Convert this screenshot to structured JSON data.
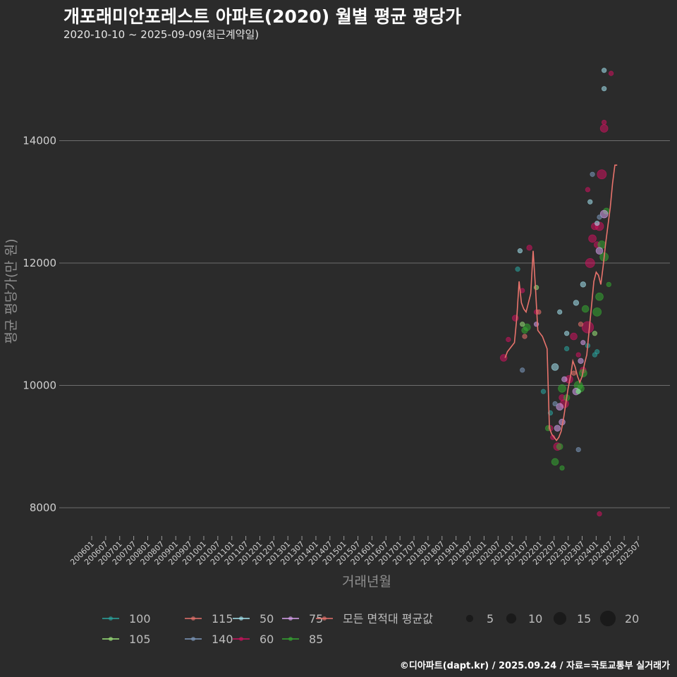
{
  "header": {
    "title": "개포래미안포레스트 아파트(2020) 월별 평균 평당가",
    "subtitle": "2020-10-10 ~ 2025-09-09(최근계약일)"
  },
  "footer": {
    "text": "©디아파트(dapt.kr) / 2025.09.24 / 자료=국토교통부 실거래가"
  },
  "colors": {
    "background": "#2b2b2b",
    "grid": "#6e6e6e",
    "avg_line": "#e8736c",
    "area_100": "#2aa6a0",
    "area_105": "#9be37a",
    "area_115": "#e8736c",
    "area_140": "#7e9bbf",
    "area_50": "#a4e4f0",
    "area_60": "#d0135f",
    "area_75": "#d9a2f0",
    "area_85": "#35a832"
  },
  "chart_data": {
    "type": "scatter",
    "title": "개포래미안포레스트 아파트(2020) 월별 평균 평당가",
    "xlabel": "거래년월",
    "ylabel": "평균 평당가(만 원)",
    "ylim": [
      7600,
      15700
    ],
    "yticks": [
      8000,
      10000,
      12000,
      14000
    ],
    "x_ticks": [
      "200601",
      "200607",
      "200701",
      "200707",
      "200801",
      "200807",
      "200901",
      "200907",
      "201001",
      "201007",
      "201101",
      "201107",
      "201201",
      "201207",
      "201301",
      "201307",
      "201401",
      "201407",
      "201501",
      "201507",
      "201601",
      "201607",
      "201701",
      "201707",
      "201801",
      "201807",
      "201901",
      "201907",
      "202001",
      "202007",
      "202101",
      "202107",
      "202201",
      "202207",
      "202301",
      "202307",
      "202401",
      "202407",
      "202501",
      "202507"
    ],
    "legend": {
      "areas": [
        {
          "key": "area_100",
          "label": "100"
        },
        {
          "key": "area_115",
          "label": "115"
        },
        {
          "key": "area_50",
          "label": "50"
        },
        {
          "key": "area_75",
          "label": "75"
        },
        {
          "key": "avg_line",
          "label": "모든 면적대 평균값"
        },
        {
          "key": "area_105",
          "label": "105"
        },
        {
          "key": "area_140",
          "label": "140"
        },
        {
          "key": "area_60",
          "label": "60"
        },
        {
          "key": "area_85",
          "label": "85"
        }
      ],
      "sizes": [
        {
          "value": 5,
          "label": "5"
        },
        {
          "value": 10,
          "label": "10"
        },
        {
          "value": 15,
          "label": "15"
        },
        {
          "value": 20,
          "label": "20"
        }
      ]
    },
    "average_line": [
      [
        "202010",
        10450
      ],
      [
        "202011",
        10550
      ],
      [
        "202012",
        10600
      ],
      [
        "202101",
        10650
      ],
      [
        "202102",
        10700
      ],
      [
        "202103",
        11100
      ],
      [
        "202104",
        11700
      ],
      [
        "202105",
        11350
      ],
      [
        "202106",
        11250
      ],
      [
        "202107",
        11200
      ],
      [
        "202108",
        11350
      ],
      [
        "202109",
        11500
      ],
      [
        "202110",
        12200
      ],
      [
        "202111",
        11600
      ],
      [
        "202112",
        10900
      ],
      [
        "202201",
        10850
      ],
      [
        "202202",
        10800
      ],
      [
        "202203",
        10700
      ],
      [
        "202204",
        10600
      ],
      [
        "202205",
        9300
      ],
      [
        "202206",
        9200
      ],
      [
        "202207",
        9150
      ],
      [
        "202208",
        9100
      ],
      [
        "202209",
        9150
      ],
      [
        "202210",
        9250
      ],
      [
        "202211",
        9450
      ],
      [
        "202212",
        9700
      ],
      [
        "202301",
        9950
      ],
      [
        "202302",
        10150
      ],
      [
        "202303",
        10400
      ],
      [
        "202304",
        10300
      ],
      [
        "202305",
        10150
      ],
      [
        "202306",
        10050
      ],
      [
        "202307",
        10150
      ],
      [
        "202308",
        10350
      ],
      [
        "202309",
        10500
      ],
      [
        "202310",
        10900
      ],
      [
        "202311",
        11300
      ],
      [
        "202312",
        11700
      ],
      [
        "202401",
        11850
      ],
      [
        "202402",
        11800
      ],
      [
        "202403",
        11650
      ],
      [
        "202404",
        11950
      ],
      [
        "202405",
        12300
      ],
      [
        "202406",
        12600
      ],
      [
        "202407",
        12900
      ],
      [
        "202408",
        13300
      ],
      [
        "202409",
        13600
      ],
      [
        "202410",
        13600
      ]
    ],
    "series": [
      {
        "name": "60",
        "color_key": "area_60",
        "points": [
          [
            "202010",
            10450,
            6
          ],
          [
            "202012",
            10750,
            3
          ],
          [
            "202103",
            11100,
            5
          ],
          [
            "202106",
            11550,
            3
          ],
          [
            "202109",
            12250,
            4
          ],
          [
            "202112",
            11200,
            3
          ],
          [
            "202206",
            9300,
            4
          ],
          [
            "202207",
            9150,
            3
          ],
          [
            "202209",
            9000,
            7
          ],
          [
            "202211",
            9800,
            5
          ],
          [
            "202212",
            9700,
            8
          ],
          [
            "202302",
            10100,
            7
          ],
          [
            "202304",
            10800,
            6
          ],
          [
            "202306",
            10500,
            3
          ],
          [
            "202308",
            10250,
            5
          ],
          [
            "202310",
            10950,
            12
          ],
          [
            "202311",
            12000,
            9
          ],
          [
            "202312",
            12400,
            7
          ],
          [
            "202401",
            12600,
            6
          ],
          [
            "202402",
            12300,
            5
          ],
          [
            "202403",
            12600,
            8
          ],
          [
            "202404",
            13450,
            9
          ],
          [
            "202405",
            14200,
            7
          ],
          [
            "202405",
            14300,
            3
          ],
          [
            "202408",
            15100,
            3
          ],
          [
            "202310",
            13200,
            3
          ],
          [
            "202403",
            7900,
            3
          ]
        ]
      },
      {
        "name": "85",
        "color_key": "area_85",
        "points": [
          [
            "202107",
            10900,
            5
          ],
          [
            "202108",
            10950,
            6
          ],
          [
            "202205",
            9300,
            4
          ],
          [
            "202208",
            8750,
            6
          ],
          [
            "202210",
            9000,
            5
          ],
          [
            "202211",
            9950,
            7
          ],
          [
            "202301",
            9800,
            5
          ],
          [
            "202306",
            10000,
            8
          ],
          [
            "202307",
            9950,
            6
          ],
          [
            "202308",
            10200,
            7
          ],
          [
            "202309",
            11250,
            6
          ],
          [
            "202402",
            11200,
            8
          ],
          [
            "202403",
            11450,
            7
          ],
          [
            "202404",
            12300,
            7
          ],
          [
            "202405",
            12100,
            8
          ],
          [
            "202406",
            12850,
            5
          ],
          [
            "202407",
            11650,
            3
          ],
          [
            "202211",
            8650,
            3
          ]
        ]
      },
      {
        "name": "75",
        "color_key": "area_75",
        "points": [
          [
            "202112",
            11000,
            3
          ],
          [
            "202209",
            9300,
            5
          ],
          [
            "202210",
            9650,
            6
          ],
          [
            "202211",
            9400,
            5
          ],
          [
            "202212",
            10100,
            4
          ],
          [
            "202305",
            9900,
            6
          ],
          [
            "202307",
            10400,
            4
          ],
          [
            "202403",
            12200,
            6
          ],
          [
            "202405",
            12800,
            7
          ],
          [
            "202308",
            10700,
            3
          ]
        ]
      },
      {
        "name": "50",
        "color_key": "area_50",
        "points": [
          [
            "202105",
            12200,
            3
          ],
          [
            "202208",
            10300,
            6
          ],
          [
            "202210",
            11200,
            3
          ],
          [
            "202301",
            10850,
            3
          ],
          [
            "202305",
            11350,
            4
          ],
          [
            "202308",
            11650,
            4
          ],
          [
            "202402",
            12650,
            3
          ],
          [
            "202405",
            14850,
            3
          ],
          [
            "202405",
            15150,
            3
          ],
          [
            "202311",
            13000,
            3
          ]
        ]
      },
      {
        "name": "100",
        "color_key": "area_100",
        "points": [
          [
            "202104",
            11900,
            3
          ],
          [
            "202203",
            9900,
            3
          ],
          [
            "202206",
            9550,
            3
          ],
          [
            "202301",
            10600,
            3
          ],
          [
            "202310",
            10650,
            3
          ],
          [
            "202401",
            10500,
            3
          ],
          [
            "202402",
            10550,
            3
          ],
          [
            "202306",
            9900,
            3
          ]
        ]
      },
      {
        "name": "105",
        "color_key": "area_105",
        "points": [
          [
            "202106",
            11000,
            3
          ],
          [
            "202112",
            11600,
            3
          ],
          [
            "202306",
            9900,
            3
          ],
          [
            "202401",
            10850,
            3
          ]
        ]
      },
      {
        "name": "115",
        "color_key": "area_115",
        "points": [
          [
            "202107",
            10800,
            3
          ],
          [
            "202201",
            11200,
            3
          ],
          [
            "202304",
            10200,
            3
          ],
          [
            "202307",
            11000,
            3
          ]
        ]
      },
      {
        "name": "140",
        "color_key": "area_140",
        "points": [
          [
            "202106",
            10250,
            3
          ],
          [
            "202208",
            9700,
            3
          ],
          [
            "202306",
            8950,
            3
          ],
          [
            "202312",
            13450,
            3
          ],
          [
            "202403",
            12750,
            3
          ]
        ]
      }
    ]
  }
}
